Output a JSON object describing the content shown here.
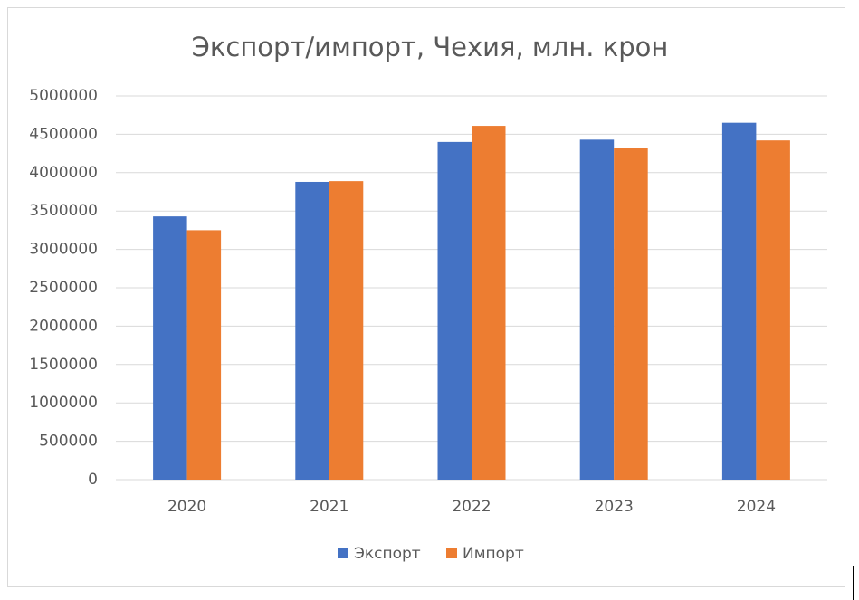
{
  "chart_data": {
    "type": "bar",
    "title": "Экспорт/импорт, Чехия, млн. крон",
    "categories": [
      "2020",
      "2021",
      "2022",
      "2023",
      "2024"
    ],
    "series": [
      {
        "name": "Экспорт",
        "color": "#4472c4",
        "values": [
          3430000,
          3880000,
          4400000,
          4430000,
          4650000
        ]
      },
      {
        "name": "Импорт",
        "color": "#ed7d31",
        "values": [
          3250000,
          3890000,
          4610000,
          4320000,
          4420000
        ]
      }
    ],
    "ylim": [
      0,
      5000000
    ],
    "yticks": [
      0,
      500000,
      1000000,
      1500000,
      2000000,
      2500000,
      3000000,
      3500000,
      4000000,
      4500000,
      5000000
    ],
    "grid": true,
    "legend": "bottom"
  }
}
